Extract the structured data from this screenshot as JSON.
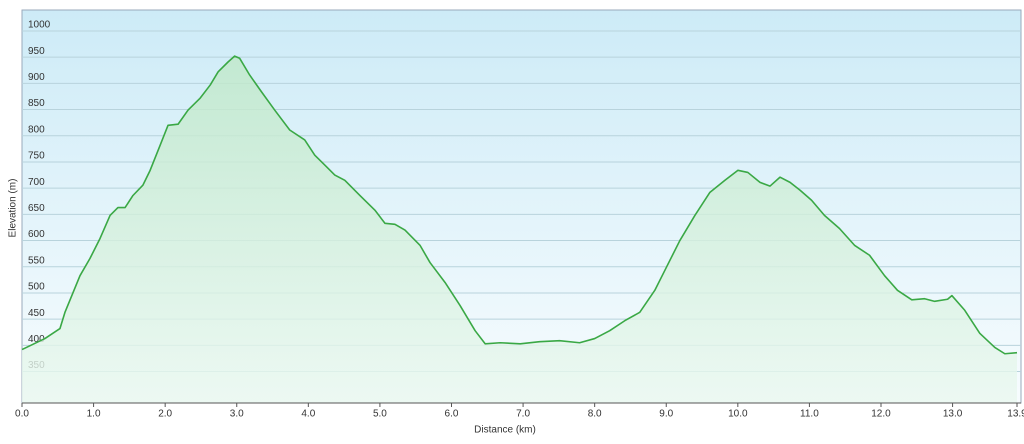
{
  "chart_data": {
    "type": "area",
    "xlabel": "Distance  (km)",
    "ylabel": "Elevation (m)",
    "color": "#3aa845",
    "x": [
      0,
      0.32,
      0.53,
      0.6,
      0.81,
      0.95,
      1.09,
      1.23,
      1.34,
      1.44,
      1.55,
      1.69,
      1.79,
      1.93,
      2.04,
      2.18,
      2.32,
      2.49,
      2.63,
      2.74,
      2.88,
      2.97,
      3.04,
      3.18,
      3.35,
      3.53,
      3.74,
      3.95,
      4.09,
      4.23,
      4.37,
      4.51,
      4.72,
      4.93,
      5.07,
      5.21,
      5.35,
      5.56,
      5.7,
      5.91,
      6.12,
      6.33,
      6.47,
      6.68,
      6.96,
      7.23,
      7.51,
      7.79,
      8.0,
      8.21,
      8.42,
      8.63,
      8.84,
      8.98,
      9.19,
      9.4,
      9.61,
      9.82,
      10.0,
      10.14,
      10.31,
      10.45,
      10.59,
      10.73,
      10.87,
      11.03,
      11.21,
      11.42,
      11.63,
      11.84,
      12.05,
      12.23,
      12.43,
      12.61,
      12.75,
      12.93,
      12.99,
      13.17,
      13.38,
      13.59,
      13.73,
      13.9
    ],
    "values": [
      392,
      413,
      432,
      463,
      533,
      566,
      604,
      648,
      663,
      663,
      686,
      706,
      734,
      782,
      820,
      822,
      849,
      872,
      897,
      922,
      941,
      952,
      948,
      916,
      883,
      849,
      811,
      792,
      763,
      744,
      725,
      715,
      686,
      658,
      633,
      631,
      620,
      591,
      558,
      520,
      476,
      428,
      403,
      405,
      403,
      407,
      409,
      405,
      413,
      428,
      447,
      463,
      505,
      543,
      600,
      648,
      692,
      715,
      734,
      730,
      711,
      704,
      721,
      711,
      696,
      677,
      648,
      623,
      591,
      572,
      533,
      505,
      487,
      489,
      484,
      488,
      495,
      467,
      423,
      396,
      384,
      386
    ],
    "xlim": [
      0,
      13.9
    ],
    "ylim": [
      290,
      1040
    ],
    "xticks": [
      {
        "value": 0,
        "label": "0.0"
      },
      {
        "value": 1,
        "label": "1.0"
      },
      {
        "value": 2,
        "label": "2.0"
      },
      {
        "value": 3,
        "label": "3.0"
      },
      {
        "value": 4,
        "label": "4.0"
      },
      {
        "value": 5,
        "label": "5.0"
      },
      {
        "value": 6,
        "label": "6.0"
      },
      {
        "value": 7,
        "label": "7.0"
      },
      {
        "value": 8,
        "label": "8.0"
      },
      {
        "value": 9,
        "label": "9.0"
      },
      {
        "value": 10,
        "label": "10.0"
      },
      {
        "value": 11,
        "label": "11.0"
      },
      {
        "value": 12,
        "label": "12.0"
      },
      {
        "value": 13,
        "label": "13.0"
      },
      {
        "value": 13.9,
        "label": "13.9"
      }
    ],
    "yticks": [
      350,
      400,
      450,
      500,
      550,
      600,
      650,
      700,
      750,
      800,
      850,
      900,
      950,
      1000
    ],
    "grid": true
  }
}
